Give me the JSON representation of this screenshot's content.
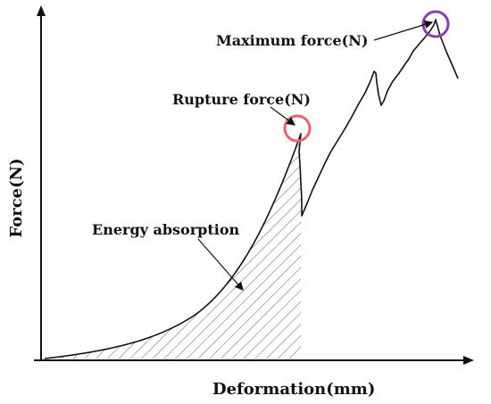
{
  "diagram": {
    "axes": {
      "x_label": "Deformation(mm)",
      "y_label": "Force(N)"
    },
    "annotations": {
      "maximum_force": "Maximum force(N)",
      "rupture_force": "Rupture force(N)",
      "energy_absorption": "Energy absorption"
    },
    "colors": {
      "curve": "#111111",
      "hatch": "#777777",
      "rupture_marker": "#e8626e",
      "maximum_marker": "#8a3fb0"
    }
  }
}
